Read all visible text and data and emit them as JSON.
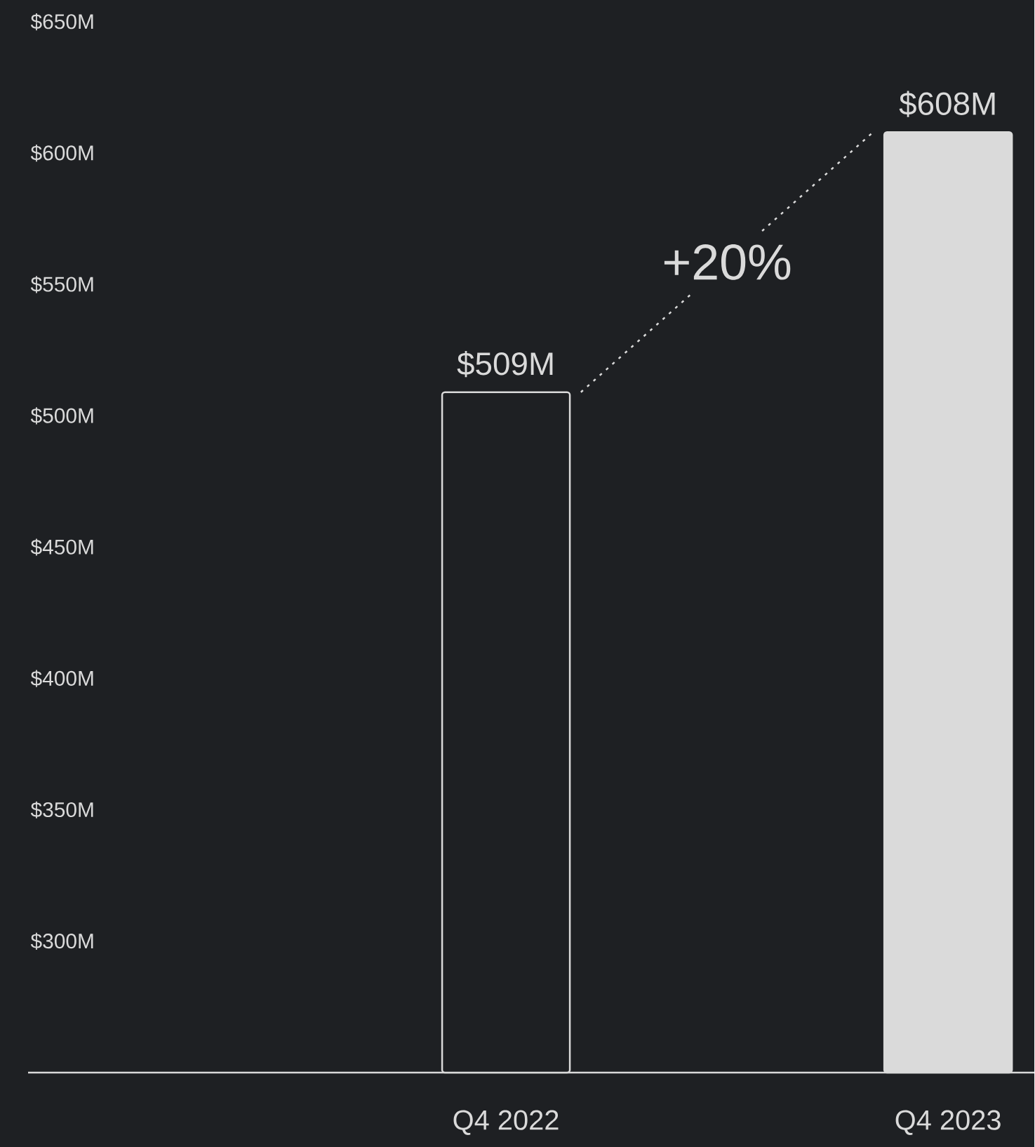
{
  "chart_data": {
    "type": "bar",
    "categories": [
      "Q4 2022",
      "Q4 2023"
    ],
    "values": [
      509,
      608
    ],
    "colors": [
      "#1e2023",
      "#dadada"
    ],
    "value_labels": [
      "$509M",
      "$608M"
    ],
    "ylim": [
      250,
      650
    ],
    "yticks": [
      {
        "value": 300,
        "label": "$300M"
      },
      {
        "value": 350,
        "label": "$350M"
      },
      {
        "value": 400,
        "label": "$400M"
      },
      {
        "value": 450,
        "label": "$450M"
      },
      {
        "value": 500,
        "label": "$500M"
      },
      {
        "value": 550,
        "label": "$550M"
      },
      {
        "value": 600,
        "label": "$600M"
      },
      {
        "value": 650,
        "label": "$650M"
      }
    ],
    "annotations": [
      "+20%"
    ],
    "grid": false
  }
}
